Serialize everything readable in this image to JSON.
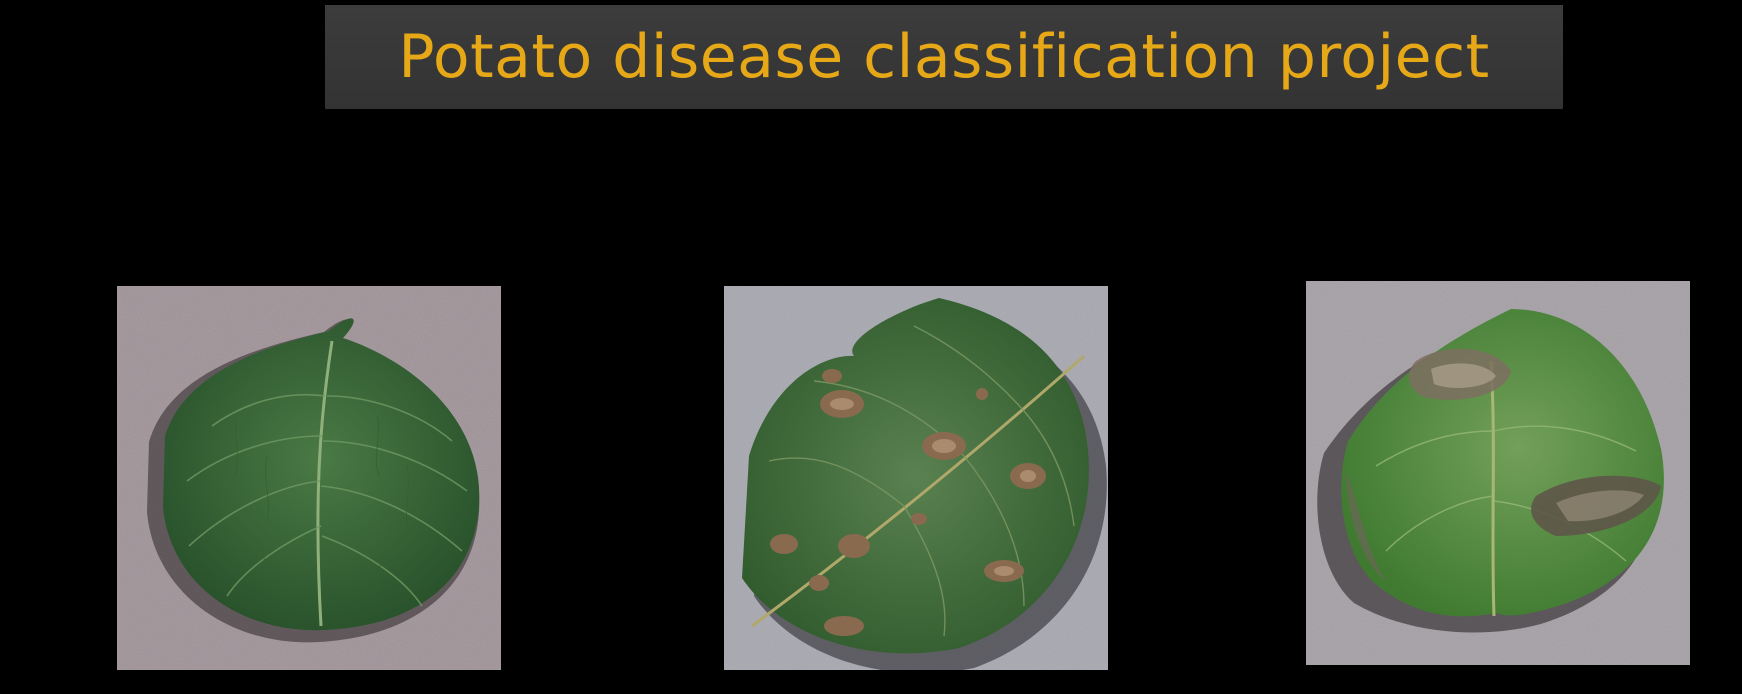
{
  "slide": {
    "title": "Potato disease classification project",
    "title_color": "#e6a817",
    "background_color": "#000000",
    "banner_color": "#383838"
  },
  "images": [
    {
      "icon": "healthy-potato-leaf-photo"
    },
    {
      "icon": "early-blight-potato-leaf-photo"
    },
    {
      "icon": "late-blight-potato-leaf-photo"
    }
  ]
}
